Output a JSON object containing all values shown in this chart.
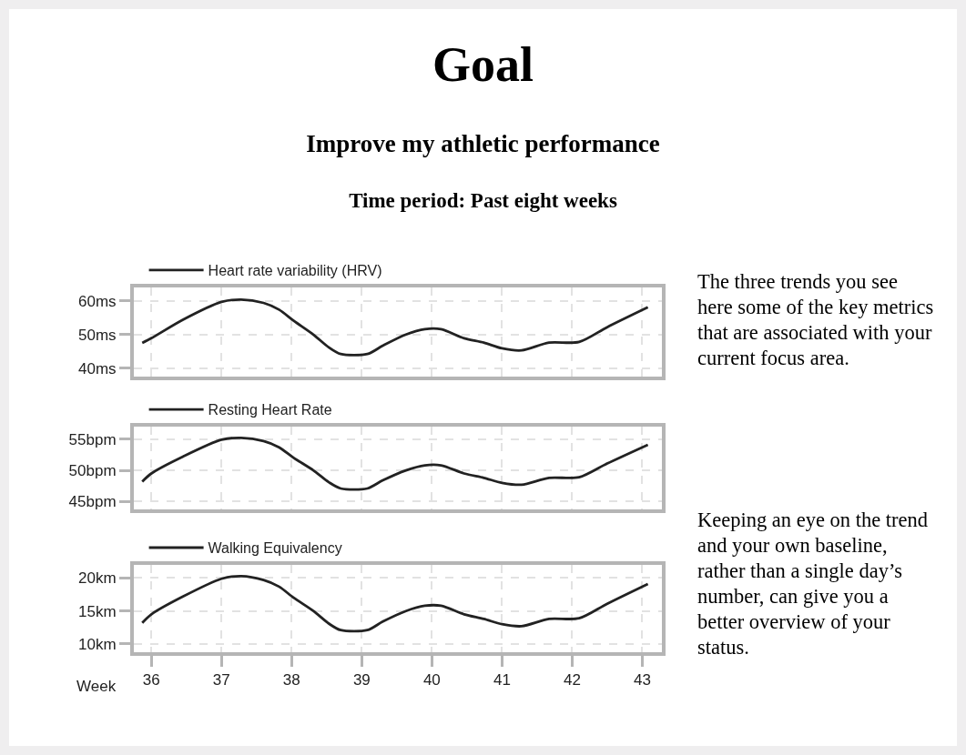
{
  "chart_data": [
    {
      "type": "other",
      "title": "Goal",
      "subtitle": "Improve my athletic performance",
      "annotations": [
        "Time period: Past eight weeks",
        "The three trends you see here some of the key metrics that are associated with your current focus area.",
        "Keeping an eye on the trend and your own baseline, rather than a single day’s number, can give you a better overview of your status."
      ]
    },
    {
      "type": "line",
      "x": [
        35.87,
        36.0,
        36.45,
        37.0,
        37.28,
        37.6,
        37.82,
        38.03,
        38.31,
        38.53,
        38.7,
        39.08,
        39.3,
        39.63,
        39.9,
        40.13,
        40.46,
        40.74,
        41.0,
        41.28,
        41.67,
        42.1,
        42.5,
        43.08
      ],
      "series": [
        {
          "name": "Heart rate variability (HRV)",
          "color": "#222222",
          "values": [
            47.5,
            48.9,
            54.4,
            59.7,
            60.4,
            59.4,
            57.4,
            54.1,
            50.0,
            46.2,
            44.2,
            44.2,
            46.7,
            50.0,
            51.6,
            51.6,
            48.9,
            47.6,
            45.9,
            45.3,
            47.6,
            47.8,
            52.2,
            58.1
          ]
        }
      ],
      "xlim": [
        35.75,
        43.28
      ],
      "xticks": [
        36,
        37,
        38,
        39,
        40,
        41,
        42,
        43
      ],
      "ylim": [
        37.5,
        64
      ],
      "yticks": [
        {
          "value": 40,
          "label": "40ms"
        },
        {
          "value": 50,
          "label": "50ms"
        },
        {
          "value": 60,
          "label": "60ms"
        }
      ],
      "grid": true,
      "legend": "top left",
      "tick_labels": "y",
      "line_style": "solid"
    },
    {
      "type": "line",
      "x": [
        35.87,
        36.0,
        36.45,
        37.0,
        37.28,
        37.6,
        37.82,
        38.03,
        38.31,
        38.53,
        38.7,
        39.08,
        39.3,
        39.63,
        39.9,
        40.13,
        40.46,
        40.74,
        41.0,
        41.28,
        41.67,
        42.1,
        42.5,
        43.08
      ],
      "series": [
        {
          "name": "Resting Heart Rate",
          "color": "#222222",
          "values": [
            48.2,
            49.5,
            52.2,
            54.9,
            55.2,
            54.7,
            53.7,
            52.0,
            50.0,
            48.1,
            47.1,
            47.1,
            48.4,
            50.0,
            50.8,
            50.8,
            49.5,
            48.8,
            48.0,
            47.7,
            48.8,
            48.9,
            51.1,
            54.1
          ]
        }
      ],
      "xlim": [
        35.75,
        43.28
      ],
      "xticks": [
        36,
        37,
        38,
        39,
        40,
        41,
        42,
        43
      ],
      "ylim": [
        43.75,
        57
      ],
      "yticks": [
        {
          "value": 45,
          "label": "45bpm"
        },
        {
          "value": 50,
          "label": "50bpm"
        },
        {
          "value": 55,
          "label": "55bpm"
        }
      ],
      "grid": true,
      "legend": "top left",
      "tick_labels": "y",
      "line_style": "solid"
    },
    {
      "type": "line",
      "xlabel": "Week",
      "x": [
        35.87,
        36.0,
        36.45,
        37.0,
        37.28,
        37.6,
        37.82,
        38.03,
        38.31,
        38.53,
        38.7,
        39.08,
        39.3,
        39.63,
        39.9,
        40.13,
        40.46,
        40.74,
        41.0,
        41.28,
        41.67,
        42.1,
        42.5,
        43.08
      ],
      "series": [
        {
          "name": "Walking Equivalency",
          "color": "#222222",
          "values": [
            13.2,
            14.5,
            17.2,
            19.9,
            20.3,
            19.7,
            18.7,
            17.0,
            15.0,
            13.1,
            12.1,
            12.1,
            13.4,
            15.0,
            15.8,
            15.8,
            14.5,
            13.8,
            13.0,
            12.7,
            13.8,
            13.9,
            16.1,
            19.1
          ]
        }
      ],
      "xlim": [
        35.75,
        43.28
      ],
      "xticks": [
        36,
        37,
        38,
        39,
        40,
        41,
        42,
        43
      ],
      "ylim": [
        8.75,
        22
      ],
      "yticks": [
        {
          "value": 10,
          "label": "10km"
        },
        {
          "value": 15,
          "label": "15km"
        },
        {
          "value": 20,
          "label": "20km"
        }
      ],
      "grid": true,
      "legend": "top left",
      "line_style": "solid"
    }
  ]
}
